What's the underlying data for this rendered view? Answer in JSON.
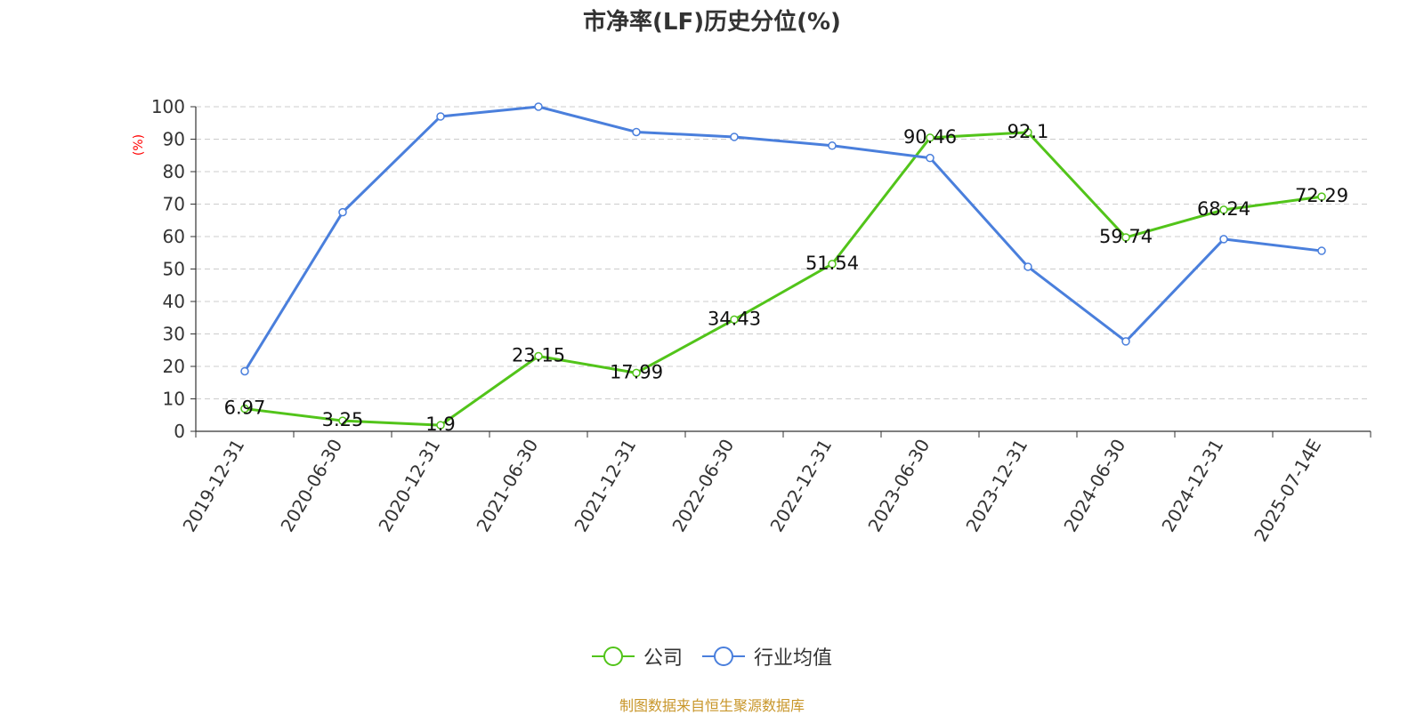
{
  "chart_data": {
    "type": "line",
    "title": "市净率(LF)历史分位(%)",
    "ylabel": "(%)",
    "xlabel": "",
    "categories": [
      "2019-12-31",
      "2020-06-30",
      "2020-12-31",
      "2021-06-30",
      "2021-12-31",
      "2022-06-30",
      "2022-12-31",
      "2023-06-30",
      "2023-12-31",
      "2024-06-30",
      "2024-12-31",
      "2025-07-14E"
    ],
    "ylim": [
      0,
      100
    ],
    "yticks": [
      0,
      10,
      20,
      30,
      40,
      50,
      60,
      70,
      80,
      90,
      100
    ],
    "grid": true,
    "legend_position": "bottom",
    "series": [
      {
        "name": "公司",
        "color": "#52c41a",
        "show_labels": true,
        "values": [
          6.97,
          3.25,
          1.9,
          23.15,
          17.99,
          34.43,
          51.54,
          90.46,
          92.1,
          59.74,
          68.24,
          72.29
        ]
      },
      {
        "name": "行业均值",
        "color": "#4a7fdc",
        "show_labels": false,
        "values": [
          18.5,
          67.5,
          97.0,
          100.0,
          92.2,
          90.7,
          88.0,
          84.2,
          50.7,
          27.7,
          59.2,
          55.6
        ]
      }
    ]
  },
  "source_text": "制图数据来自恒生聚源数据库"
}
